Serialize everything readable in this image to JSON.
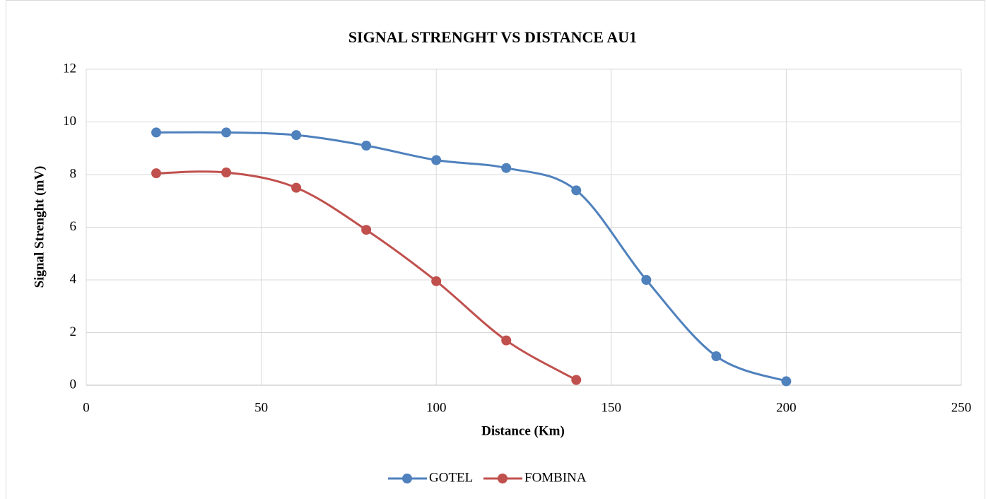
{
  "chart_data": {
    "type": "line",
    "title": "SIGNAL STRENGHT VS DISTANCE AU1",
    "x_label": "Distance (Km)",
    "y_label": "Signal Strenght (mV)",
    "series": [
      {
        "name": "GOTEL",
        "color": "#4f81bd",
        "x": [
          20,
          40,
          60,
          80,
          100,
          120,
          140,
          160,
          180,
          200
        ],
        "values": [
          9.6,
          9.6,
          9.5,
          9.1,
          8.55,
          8.25,
          7.4,
          4.0,
          1.1,
          0.15
        ]
      },
      {
        "name": "FOMBINA",
        "color": "#c0504d",
        "x": [
          20,
          40,
          60,
          80,
          100,
          120,
          140
        ],
        "values": [
          8.05,
          8.08,
          7.5,
          5.9,
          3.95,
          1.7,
          0.2
        ]
      }
    ],
    "xlim": [
      0,
      250
    ],
    "xticks": [
      0,
      50,
      100,
      150,
      200,
      250
    ],
    "ylim": [
      0,
      12
    ],
    "yticks": [
      0,
      2,
      4,
      6,
      8,
      10,
      12
    ],
    "grid": true,
    "smooth": true,
    "legend": "bottom"
  }
}
